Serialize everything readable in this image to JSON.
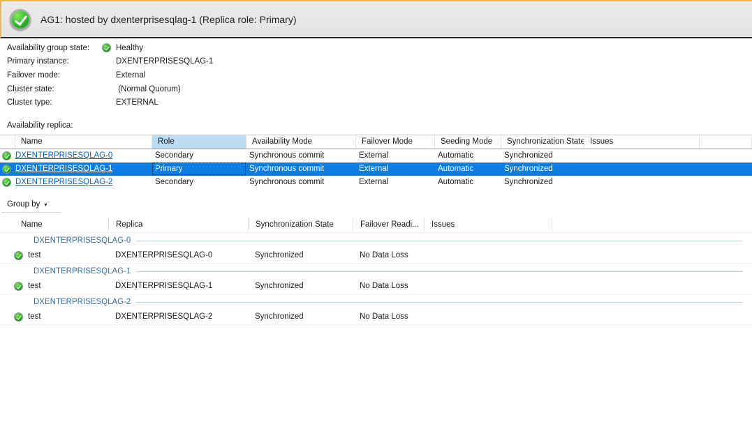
{
  "colors": {
    "accent_amber": "#eab554",
    "header_bg": "#e8e8e8",
    "selection_blue": "#0d7de2",
    "link_blue": "#0563c1",
    "healthy_green": "#27af26",
    "role_header_highlight": "#bcdcf4",
    "group_label_blue": "#3a6ea5",
    "group_line": "#b9cfe2"
  },
  "header": {
    "title": "AG1: hosted by dxenterprisesqlag-1 (Replica role: Primary)",
    "status_icon": "healthy-check-icon"
  },
  "summary": {
    "rows": [
      {
        "label": "Availability group state:",
        "value": "Healthy",
        "icon": "healthy-check-icon"
      },
      {
        "label": "Primary instance:",
        "value": "DXENTERPRISESQLAG-1"
      },
      {
        "label": "Failover mode:",
        "value": "External"
      },
      {
        "label": "Cluster state:",
        "value": " (Normal Quorum)"
      },
      {
        "label": "Cluster type:",
        "value": "EXTERNAL"
      }
    ]
  },
  "replica_section": {
    "label": "Availability replica:",
    "columns": [
      "Name",
      "Role",
      "Availability Mode",
      "Failover Mode",
      "Seeding Mode",
      "Synchronization State",
      "Issues"
    ],
    "rows": [
      {
        "icon": "healthy-check-icon",
        "name": "DXENTERPRISESQLAG-0",
        "role": "Secondary",
        "availability_mode": "Synchronous commit",
        "failover_mode": "External",
        "seeding_mode": "Automatic",
        "synchronization_state": "Synchronized",
        "issues": "",
        "selected": false
      },
      {
        "icon": "healthy-check-icon",
        "name": "DXENTERPRISESQLAG-1",
        "role": "Primary",
        "availability_mode": "Synchronous commit",
        "failover_mode": "External",
        "seeding_mode": "Automatic",
        "synchronization_state": "Synchronized",
        "issues": "",
        "selected": true
      },
      {
        "icon": "healthy-check-icon",
        "name": "DXENTERPRISESQLAG-2",
        "role": "Secondary",
        "availability_mode": "Synchronous commit",
        "failover_mode": "External",
        "seeding_mode": "Automatic",
        "synchronization_state": "Synchronized",
        "issues": "",
        "selected": false
      }
    ]
  },
  "database_section": {
    "group_by_label": "Group by",
    "columns": [
      "Name",
      "Replica",
      "Synchronization State",
      "Failover Readi...",
      "Issues"
    ],
    "groups": [
      {
        "group_label": "DXENTERPRISESQLAG-0",
        "rows": [
          {
            "icon": "healthy-check-icon",
            "name": "test",
            "replica": "DXENTERPRISESQLAG-0",
            "synchronization_state": "Synchronized",
            "failover_readiness": "No Data Loss",
            "issues": ""
          }
        ]
      },
      {
        "group_label": "DXENTERPRISESQLAG-1",
        "rows": [
          {
            "icon": "healthy-check-icon",
            "name": "test",
            "replica": "DXENTERPRISESQLAG-1",
            "synchronization_state": "Synchronized",
            "failover_readiness": "No Data Loss",
            "issues": ""
          }
        ]
      },
      {
        "group_label": "DXENTERPRISESQLAG-2",
        "rows": [
          {
            "icon": "healthy-check-icon",
            "name": "test",
            "replica": "DXENTERPRISESQLAG-2",
            "synchronization_state": "Synchronized",
            "failover_readiness": "No Data Loss",
            "issues": ""
          }
        ]
      }
    ]
  }
}
